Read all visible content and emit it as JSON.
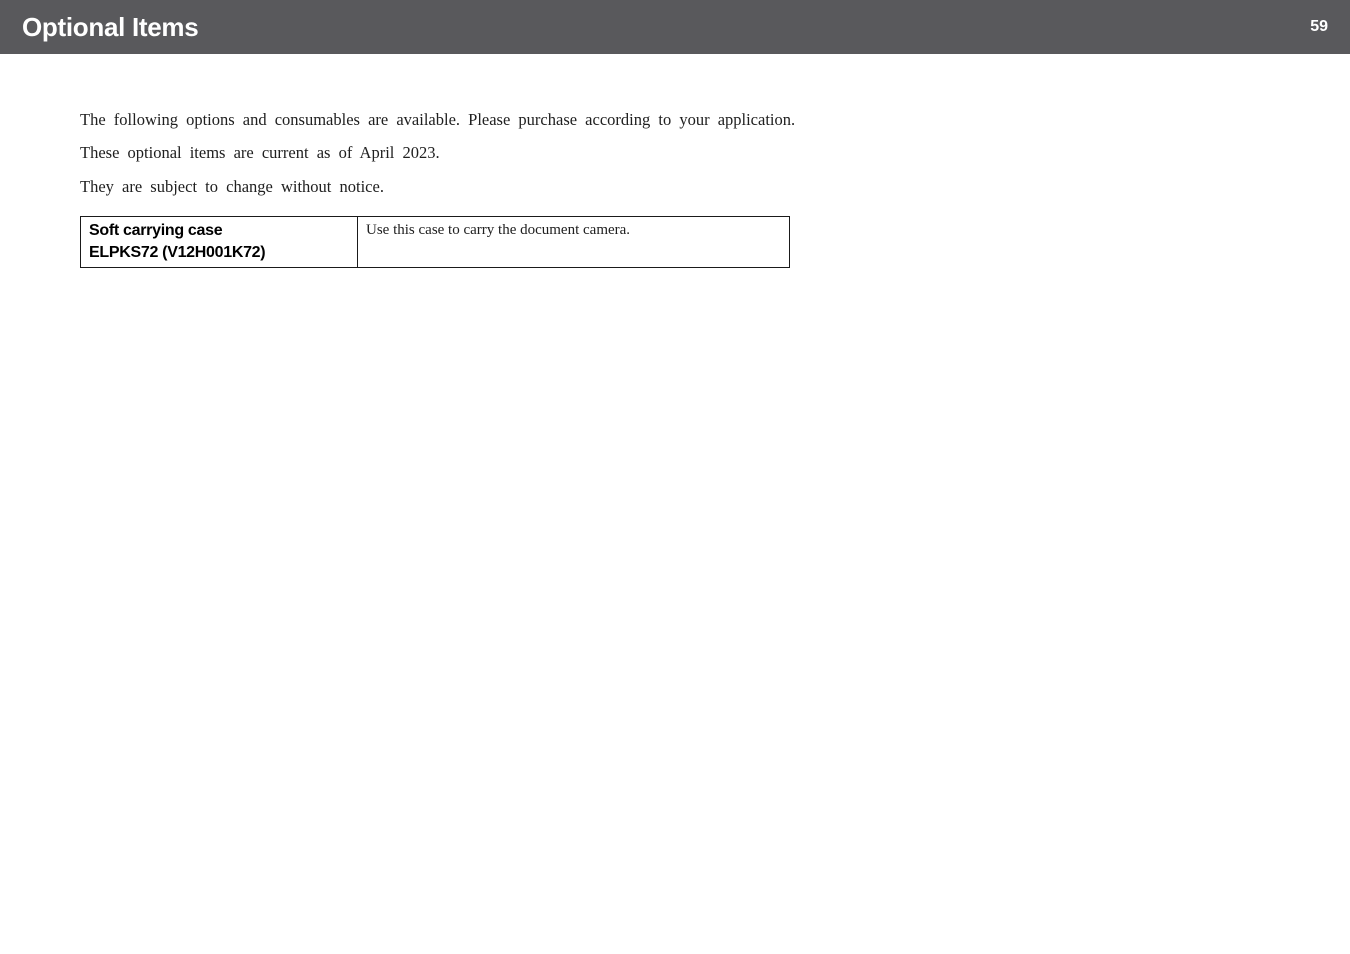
{
  "header": {
    "title": "Optional Items",
    "page_number": "59",
    "background_color": "#59595c",
    "text_color": "#ffffff",
    "title_fontsize": 26,
    "page_fontsize": 16
  },
  "body": {
    "paragraphs": [
      "The following options and consumables are available. Please purchase according to your application.",
      "These optional items are current as of April 2023.",
      "They are subject to change without notice."
    ],
    "fontsize": 16.5,
    "text_color": "#202020"
  },
  "table": {
    "border_color": "#1a1a1a",
    "rows": [
      {
        "name_line1": "Soft carrying case",
        "name_line2": "ELPKS72 (V12H001K72)",
        "description": "Use this case to carry the document camera."
      }
    ],
    "name_font": "sans-serif",
    "name_fontsize": 16,
    "desc_fontsize": 15
  }
}
